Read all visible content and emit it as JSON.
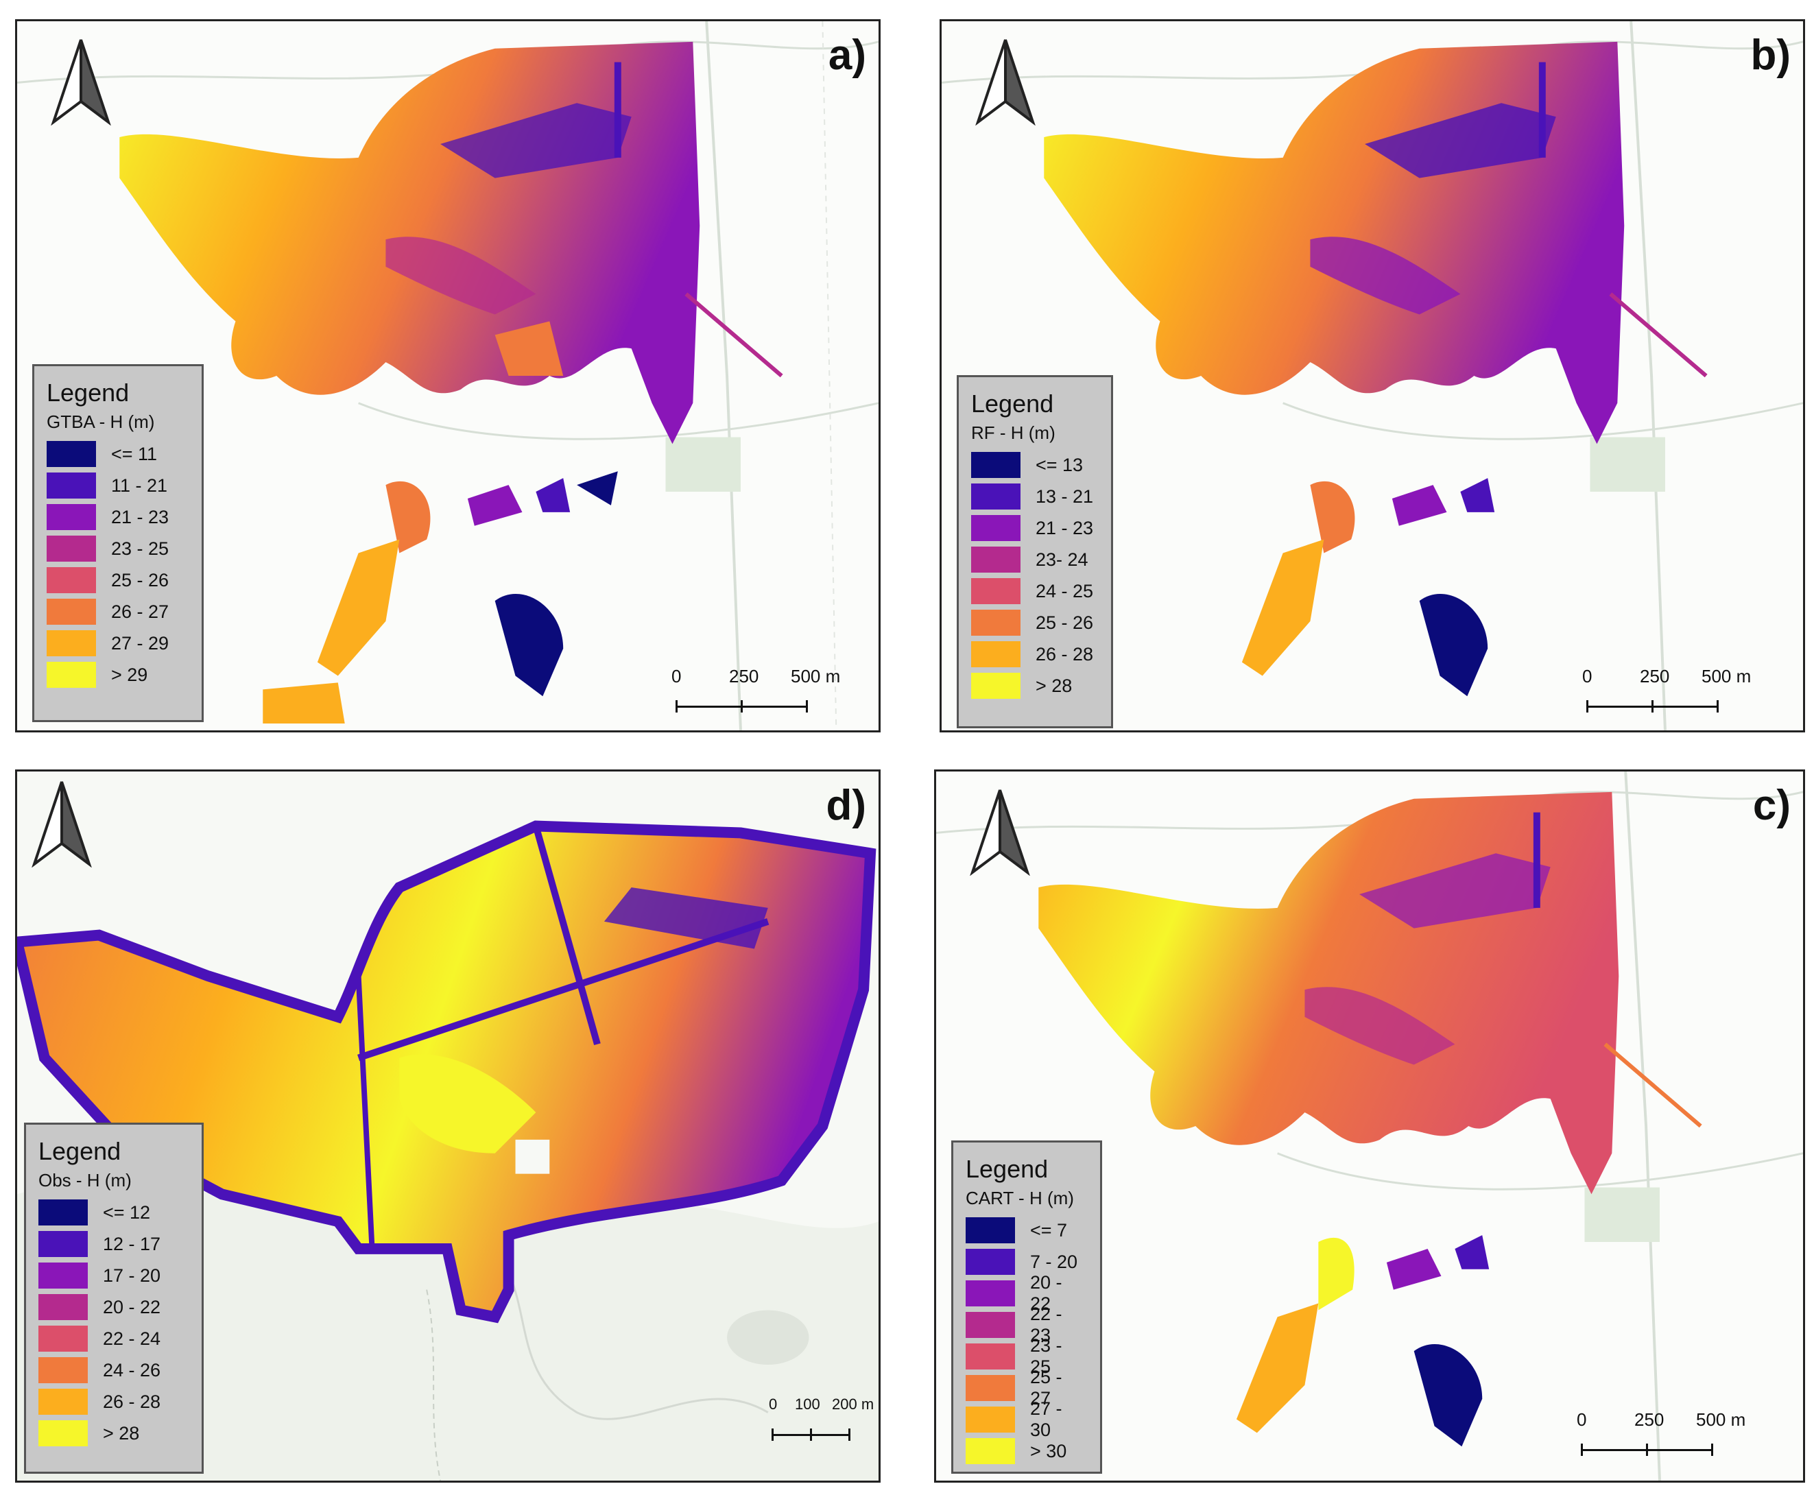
{
  "colors": {
    "class1": "#0b0b7a",
    "class2": "#4a12b8",
    "class3": "#8a16b8",
    "class4": "#b42a8e",
    "class5": "#dc4f6a",
    "class6": "#f07a3c",
    "class7": "#fcae1e",
    "class8": "#f6f62a",
    "legend_bg": "#c8c8c8",
    "map_bg": "#fbfcfa",
    "road": "#d7dfd6"
  },
  "panels": [
    {
      "id": "a",
      "label": "a)",
      "legend": {
        "title": "Legend",
        "subtitle": "GTBA - H (m)",
        "classes": [
          "<= 11",
          "11 - 21",
          "21 - 23",
          "23 - 25",
          "25 - 26",
          "26 - 27",
          "27 - 29",
          "> 29"
        ]
      },
      "scale": {
        "ticks": [
          "0",
          "250",
          "500 m"
        ]
      }
    },
    {
      "id": "b",
      "label": "b)",
      "legend": {
        "title": "Legend",
        "subtitle": "RF - H (m)",
        "classes": [
          "<= 13",
          "13 - 21",
          "21 - 23",
          "23- 24",
          "24 - 25",
          "25 - 26",
          "26 - 28",
          "> 28"
        ]
      },
      "scale": {
        "ticks": [
          "0",
          "250",
          "500 m"
        ]
      }
    },
    {
      "id": "d",
      "label": "d)",
      "legend": {
        "title": "Legend",
        "subtitle": "Obs  - H (m)",
        "classes": [
          "<= 12",
          "12 - 17",
          "17 - 20",
          "20 - 22",
          "22 - 24",
          "24 - 26",
          "26 - 28",
          "> 28"
        ]
      },
      "scale": {
        "ticks": [
          "0",
          "100",
          "200 m"
        ]
      }
    },
    {
      "id": "c",
      "label": "c)",
      "legend": {
        "title": "Legend",
        "subtitle": "CART - H (m)",
        "classes": [
          "<= 7",
          "7 - 20",
          "20 - 22",
          "22 - 23",
          "23 - 25",
          "25 - 27",
          "27 - 30",
          "> 30"
        ]
      },
      "scale": {
        "ticks": [
          "0",
          "250",
          "500 m"
        ]
      }
    }
  ]
}
